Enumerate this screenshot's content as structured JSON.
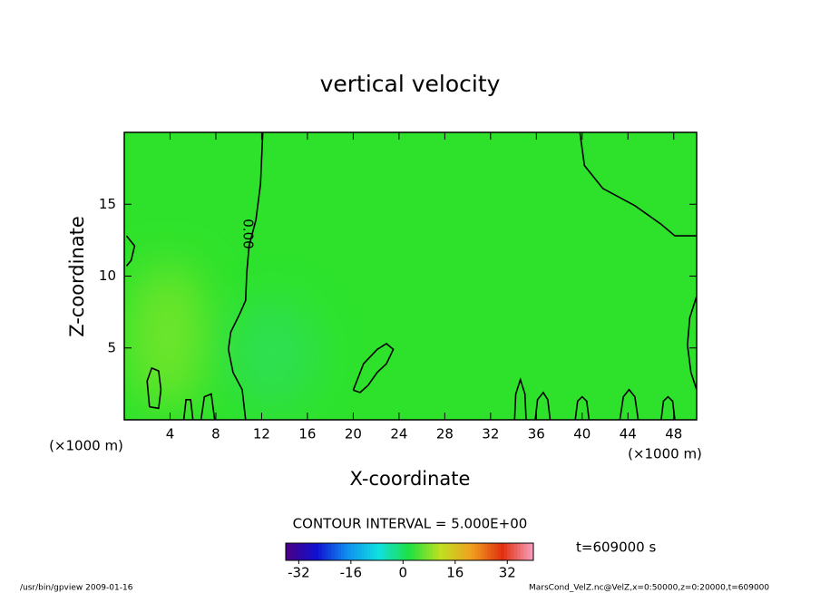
{
  "chart_data": {
    "type": "contour",
    "title": "vertical velocity",
    "x_label": "X-coordinate",
    "y_label": "Z-coordinate",
    "x_unit": "(×1000 m)",
    "x_unit_right": "(×1000 m)",
    "xlim": [
      0,
      50
    ],
    "ylim": [
      0,
      20
    ],
    "xticks": [
      4,
      8,
      12,
      16,
      20,
      24,
      28,
      32,
      36,
      40,
      44,
      48
    ],
    "yticks": [
      5,
      10,
      15
    ],
    "contour_label": "0.00",
    "contour_interval_text": "CONTOUR INTERVAL = 5.000E+00",
    "time_text": "t=609000 s",
    "footer_left": "/usr/bin/gpview  2009-01-16",
    "footer_right": "MarsCond_VelZ.nc@VelZ,x=0:50000,z=0:20000,t=609000",
    "field_color": "#2ee22c",
    "line_color": "#000000",
    "colorbar_lim": [
      -36,
      40
    ],
    "colorbar_ticks": [
      -32,
      -16,
      0,
      16,
      32
    ],
    "colormap": [
      "#4b0082",
      "#1010d0",
      "#1090f0",
      "#10e0e0",
      "#20e040",
      "#c0e020",
      "#f0a020",
      "#e03010",
      "#f8a0c0"
    ],
    "contours": [
      {
        "x": [
          12.1,
          11.9,
          11.5,
          10.9,
          10.7,
          10.6,
          10.1,
          9.3,
          9.1,
          9.5,
          10.3,
          10.6
        ],
        "y": [
          20,
          16.4,
          13.9,
          12.1,
          10.2,
          8.3,
          7.4,
          6.1,
          4.9,
          3.3,
          2.1,
          0
        ]
      },
      {
        "x": [
          39.8,
          40.2,
          41.8,
          44.6,
          46.9,
          48.1,
          50
        ],
        "y": [
          20,
          17.7,
          16.1,
          14.9,
          13.6,
          12.8,
          12.8
        ]
      },
      {
        "x": [
          0.2,
          0.9,
          0.6,
          0.2
        ],
        "y": [
          12.8,
          12.1,
          11.1,
          10.7
        ]
      },
      {
        "x": [
          20,
          20.9,
          22.1,
          22.9,
          23.5,
          22.9,
          22.1,
          21.3,
          20.6,
          20
        ],
        "y": [
          2.06,
          3.9,
          4.9,
          5.3,
          4.9,
          3.9,
          3.3,
          2.4,
          1.9,
          2.06
        ]
      },
      {
        "x": [
          2.2,
          2.0,
          2.4,
          3.0,
          3.2,
          3.0,
          2.2
        ],
        "y": [
          0.9,
          2.7,
          3.6,
          3.4,
          2.1,
          0.8,
          0.9
        ]
      },
      {
        "x": [
          50,
          49.4,
          49.2,
          49.5,
          50
        ],
        "y": [
          8.6,
          7.1,
          5.2,
          3.3,
          2.1
        ]
      },
      {
        "x": [
          35.9,
          36.1,
          36.6,
          37.0,
          37.2
        ],
        "y": [
          0,
          1.4,
          1.9,
          1.4,
          0
        ]
      },
      {
        "x": [
          43.3,
          43.6,
          44.1,
          44.6,
          44.9
        ],
        "y": [
          0,
          1.6,
          2.1,
          1.6,
          0
        ]
      },
      {
        "x": [
          39.4,
          39.6,
          40.0,
          40.4,
          40.6
        ],
        "y": [
          0,
          1.3,
          1.6,
          1.3,
          0
        ]
      },
      {
        "x": [
          46.9,
          47.1,
          47.5,
          47.9,
          48.1
        ],
        "y": [
          0,
          1.3,
          1.6,
          1.3,
          0
        ]
      },
      {
        "x": [
          34.1,
          34.2,
          34.6,
          35.0,
          35.1
        ],
        "y": [
          0,
          1.8,
          2.8,
          1.8,
          0
        ]
      },
      {
        "x": [
          5.2,
          5.4,
          5.8,
          6.0
        ],
        "y": [
          0,
          1.4,
          1.4,
          0
        ]
      },
      {
        "x": [
          6.7,
          7.0,
          7.6,
          7.9
        ],
        "y": [
          0,
          1.6,
          1.8,
          0
        ]
      }
    ]
  }
}
